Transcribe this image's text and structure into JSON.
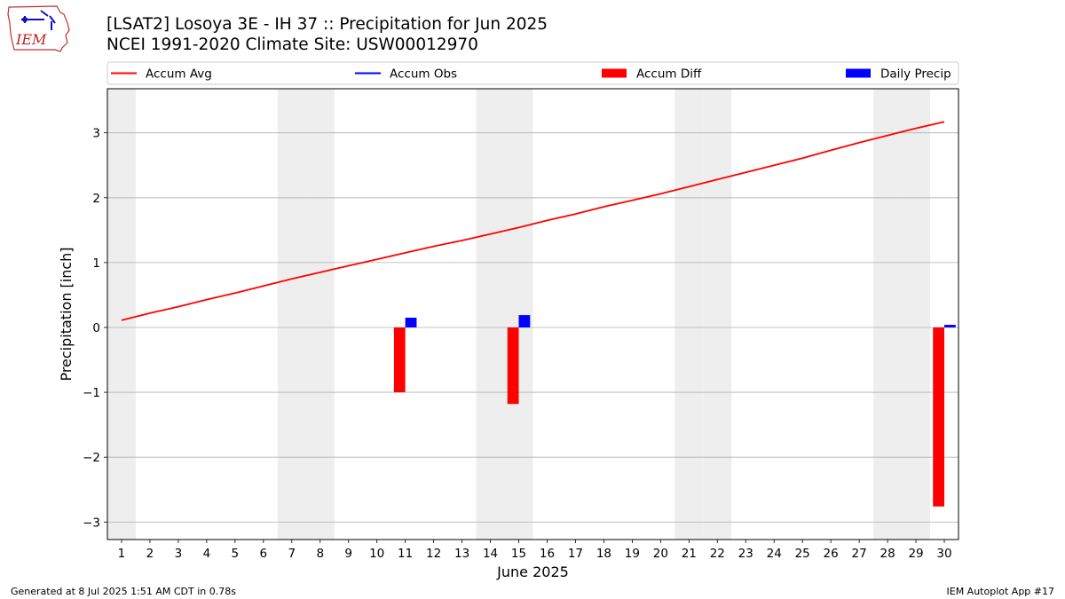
{
  "header": {
    "title_line1": "[LSAT2] Losoya 3E - IH 37 :: Precipitation for Jun 2025",
    "title_line2": "NCEI 1991-2020 Climate Site: USW00012970",
    "logo_text": "IEM"
  },
  "footer": {
    "left": "Generated at 8 Jul 2025 1:51 AM CDT in 0.78s",
    "right": "IEM Autoplot App #17"
  },
  "colors": {
    "accum_avg": "#ff0000",
    "accum_obs": "#0000ff",
    "accum_diff": "#ff0000",
    "daily_precip": "#0000ff",
    "weekend_shade": "#eeeeee",
    "grid": "#b0b0b0"
  },
  "chart_data": {
    "type": "bar",
    "xlabel": "June 2025",
    "ylabel": "Precipitation [inch]",
    "xlim": [
      0.5,
      30.5
    ],
    "ylim": [
      -3.27,
      3.68
    ],
    "yticks": [
      -3,
      -2,
      -1,
      0,
      1,
      2,
      3
    ],
    "xticks": [
      1,
      2,
      3,
      4,
      5,
      6,
      7,
      8,
      9,
      10,
      11,
      12,
      13,
      14,
      15,
      16,
      17,
      18,
      19,
      20,
      21,
      22,
      23,
      24,
      25,
      26,
      27,
      28,
      29,
      30
    ],
    "grid": "y",
    "legend_placement": "top, above plot",
    "weekend_days": [
      1,
      7,
      8,
      14,
      15,
      21,
      22,
      28,
      29
    ],
    "legend": [
      {
        "label": "Accum Avg",
        "kind": "line",
        "color": "#ff0000"
      },
      {
        "label": "Accum Obs",
        "kind": "line",
        "color": "#0000ff"
      },
      {
        "label": "Accum Diff",
        "kind": "bar",
        "color": "#ff0000"
      },
      {
        "label": "Daily Precip",
        "kind": "bar",
        "color": "#0000ff"
      }
    ],
    "series": [
      {
        "name": "Accum Avg",
        "kind": "line",
        "x": [
          1,
          2,
          3,
          4,
          5,
          6,
          7,
          8,
          9,
          10,
          11,
          12,
          13,
          14,
          15,
          16,
          17,
          18,
          19,
          20,
          21,
          22,
          23,
          24,
          25,
          26,
          27,
          28,
          29,
          30
        ],
        "values": [
          0.11,
          0.22,
          0.32,
          0.43,
          0.53,
          0.64,
          0.75,
          0.85,
          0.95,
          1.05,
          1.15,
          1.25,
          1.34,
          1.44,
          1.54,
          1.65,
          1.75,
          1.86,
          1.96,
          2.06,
          2.17,
          2.28,
          2.39,
          2.5,
          2.61,
          2.73,
          2.85,
          2.96,
          3.07,
          3.17
        ]
      },
      {
        "name": "Accum Diff",
        "kind": "bar",
        "x": [
          10.8,
          14.8,
          29.8
        ],
        "values": [
          -1.0,
          -1.18,
          -2.76
        ]
      },
      {
        "name": "Daily Precip",
        "kind": "bar",
        "x": [
          11.2,
          15.2,
          30.2
        ],
        "values": [
          0.15,
          0.19,
          0.04
        ]
      }
    ]
  }
}
